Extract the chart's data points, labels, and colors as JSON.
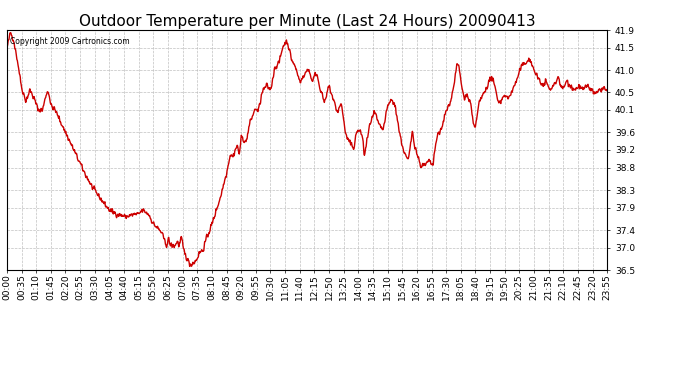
{
  "title": "Outdoor Temperature per Minute (Last 24 Hours) 20090413",
  "copyright_text": "Copyright 2009 Cartronics.com",
  "line_color": "#cc0000",
  "background_color": "#ffffff",
  "plot_bg_color": "#ffffff",
  "grid_color": "#b0b0b0",
  "ylim": [
    36.5,
    41.9
  ],
  "yticks": [
    36.5,
    37.0,
    37.4,
    37.9,
    38.3,
    38.8,
    39.2,
    39.6,
    40.1,
    40.5,
    41.0,
    41.5,
    41.9
  ],
  "title_fontsize": 11,
  "tick_fontsize": 6.5,
  "line_width": 1.0,
  "xtick_labels": [
    "00:00",
    "00:35",
    "01:10",
    "01:45",
    "02:20",
    "02:55",
    "03:30",
    "04:05",
    "04:40",
    "05:15",
    "05:50",
    "06:25",
    "07:00",
    "07:35",
    "08:10",
    "08:45",
    "09:20",
    "09:55",
    "10:30",
    "11:05",
    "11:40",
    "12:15",
    "12:50",
    "13:25",
    "14:00",
    "14:35",
    "15:10",
    "15:45",
    "16:20",
    "16:55",
    "17:30",
    "18:05",
    "18:40",
    "19:15",
    "19:50",
    "20:25",
    "21:00",
    "21:35",
    "22:10",
    "22:45",
    "23:20",
    "23:55"
  ],
  "control_points": [
    [
      0,
      41.5
    ],
    [
      8,
      41.85
    ],
    [
      15,
      41.7
    ],
    [
      25,
      41.2
    ],
    [
      35,
      40.6
    ],
    [
      45,
      40.3
    ],
    [
      55,
      40.55
    ],
    [
      65,
      40.35
    ],
    [
      75,
      40.1
    ],
    [
      85,
      40.1
    ],
    [
      95,
      40.5
    ],
    [
      100,
      40.5
    ],
    [
      105,
      40.2
    ],
    [
      115,
      40.1
    ],
    [
      125,
      39.9
    ],
    [
      145,
      39.5
    ],
    [
      165,
      39.1
    ],
    [
      185,
      38.7
    ],
    [
      205,
      38.35
    ],
    [
      225,
      38.1
    ],
    [
      245,
      37.85
    ],
    [
      265,
      37.75
    ],
    [
      285,
      37.7
    ],
    [
      305,
      37.75
    ],
    [
      315,
      37.75
    ],
    [
      325,
      37.85
    ],
    [
      340,
      37.75
    ],
    [
      350,
      37.55
    ],
    [
      360,
      37.45
    ],
    [
      370,
      37.35
    ],
    [
      378,
      37.15
    ],
    [
      383,
      37.05
    ],
    [
      387,
      37.2
    ],
    [
      392,
      37.05
    ],
    [
      397,
      37.05
    ],
    [
      403,
      37.05
    ],
    [
      408,
      37.15
    ],
    [
      413,
      37.05
    ],
    [
      418,
      37.25
    ],
    [
      422,
      37.0
    ],
    [
      427,
      36.85
    ],
    [
      432,
      36.75
    ],
    [
      437,
      36.65
    ],
    [
      441,
      36.62
    ],
    [
      445,
      36.65
    ],
    [
      450,
      36.68
    ],
    [
      455,
      36.75
    ],
    [
      462,
      36.9
    ],
    [
      470,
      36.95
    ],
    [
      476,
      37.15
    ],
    [
      482,
      37.3
    ],
    [
      492,
      37.55
    ],
    [
      502,
      37.85
    ],
    [
      512,
      38.15
    ],
    [
      520,
      38.45
    ],
    [
      528,
      38.75
    ],
    [
      535,
      39.1
    ],
    [
      542,
      39.05
    ],
    [
      547,
      39.2
    ],
    [
      552,
      39.3
    ],
    [
      557,
      39.1
    ],
    [
      562,
      39.5
    ],
    [
      567,
      39.45
    ],
    [
      572,
      39.35
    ],
    [
      577,
      39.55
    ],
    [
      582,
      39.8
    ],
    [
      592,
      40.05
    ],
    [
      597,
      40.15
    ],
    [
      602,
      40.05
    ],
    [
      612,
      40.5
    ],
    [
      622,
      40.65
    ],
    [
      632,
      40.55
    ],
    [
      642,
      41.05
    ],
    [
      652,
      41.15
    ],
    [
      662,
      41.55
    ],
    [
      672,
      41.65
    ],
    [
      682,
      41.25
    ],
    [
      692,
      41.05
    ],
    [
      702,
      40.75
    ],
    [
      712,
      40.85
    ],
    [
      722,
      41.05
    ],
    [
      732,
      40.75
    ],
    [
      742,
      40.95
    ],
    [
      752,
      40.55
    ],
    [
      762,
      40.25
    ],
    [
      772,
      40.65
    ],
    [
      782,
      40.35
    ],
    [
      792,
      40.05
    ],
    [
      802,
      40.25
    ],
    [
      812,
      39.55
    ],
    [
      822,
      39.35
    ],
    [
      832,
      39.25
    ],
    [
      837,
      39.55
    ],
    [
      842,
      39.65
    ],
    [
      852,
      39.55
    ],
    [
      857,
      39.05
    ],
    [
      862,
      39.35
    ],
    [
      872,
      39.85
    ],
    [
      882,
      40.05
    ],
    [
      892,
      39.75
    ],
    [
      902,
      39.65
    ],
    [
      912,
      40.15
    ],
    [
      922,
      40.35
    ],
    [
      932,
      40.15
    ],
    [
      942,
      39.55
    ],
    [
      952,
      39.15
    ],
    [
      962,
      38.95
    ],
    [
      967,
      39.25
    ],
    [
      972,
      39.65
    ],
    [
      977,
      39.35
    ],
    [
      982,
      39.15
    ],
    [
      992,
      38.85
    ],
    [
      1002,
      38.85
    ],
    [
      1012,
      38.95
    ],
    [
      1022,
      38.85
    ],
    [
      1027,
      39.25
    ],
    [
      1032,
      39.55
    ],
    [
      1042,
      39.65
    ],
    [
      1052,
      40.05
    ],
    [
      1062,
      40.25
    ],
    [
      1072,
      40.65
    ],
    [
      1077,
      41.05
    ],
    [
      1082,
      41.15
    ],
    [
      1087,
      40.85
    ],
    [
      1092,
      40.55
    ],
    [
      1097,
      40.35
    ],
    [
      1102,
      40.45
    ],
    [
      1112,
      40.25
    ],
    [
      1117,
      39.85
    ],
    [
      1122,
      39.65
    ],
    [
      1127,
      39.95
    ],
    [
      1132,
      40.25
    ],
    [
      1142,
      40.45
    ],
    [
      1152,
      40.65
    ],
    [
      1162,
      40.85
    ],
    [
      1172,
      40.55
    ],
    [
      1177,
      40.35
    ],
    [
      1182,
      40.25
    ],
    [
      1192,
      40.45
    ],
    [
      1202,
      40.35
    ],
    [
      1212,
      40.55
    ],
    [
      1217,
      40.65
    ],
    [
      1222,
      40.75
    ],
    [
      1232,
      41.05
    ],
    [
      1242,
      41.15
    ],
    [
      1252,
      41.25
    ],
    [
      1262,
      41.05
    ],
    [
      1272,
      40.85
    ],
    [
      1282,
      40.65
    ],
    [
      1292,
      40.75
    ],
    [
      1302,
      40.55
    ],
    [
      1312,
      40.65
    ],
    [
      1317,
      40.75
    ],
    [
      1322,
      40.85
    ],
    [
      1332,
      40.55
    ],
    [
      1342,
      40.75
    ],
    [
      1352,
      40.65
    ],
    [
      1362,
      40.55
    ],
    [
      1372,
      40.65
    ],
    [
      1382,
      40.55
    ],
    [
      1392,
      40.65
    ],
    [
      1402,
      40.55
    ],
    [
      1412,
      40.45
    ],
    [
      1422,
      40.55
    ],
    [
      1432,
      40.6
    ],
    [
      1440,
      40.5
    ]
  ]
}
